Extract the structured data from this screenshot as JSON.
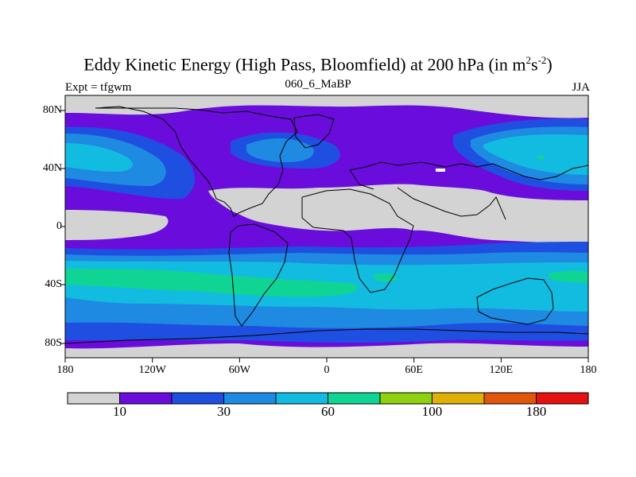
{
  "map": {
    "title_main": "Eddy Kinetic Energy (High Pass, Bloomfield) at 200 hPa (in m",
    "title_sup1": "2",
    "title_mid": "s",
    "title_sup2": "-2",
    "title_end": ")",
    "subtitle_left": "Expt = tfgwm",
    "subtitle_center": "060_6_MaBP",
    "subtitle_right": "JJA",
    "lat_labels": [
      "80N",
      "40N",
      "0",
      "40S",
      "80S"
    ],
    "lon_labels": [
      "180",
      "120W",
      "60W",
      "0",
      "60E",
      "120E",
      "180"
    ],
    "projection": "cylindrical equidistant",
    "coastlines": true
  },
  "colorbar": {
    "colors": [
      "#d3d3d3",
      "#6a0ddc",
      "#1f4fe0",
      "#1e8ae2",
      "#12bce0",
      "#10d493",
      "#8ed10e",
      "#e0b007",
      "#e0560a",
      "#e51010"
    ],
    "labels": [
      "10",
      "30",
      "60",
      "100",
      "180"
    ]
  }
}
